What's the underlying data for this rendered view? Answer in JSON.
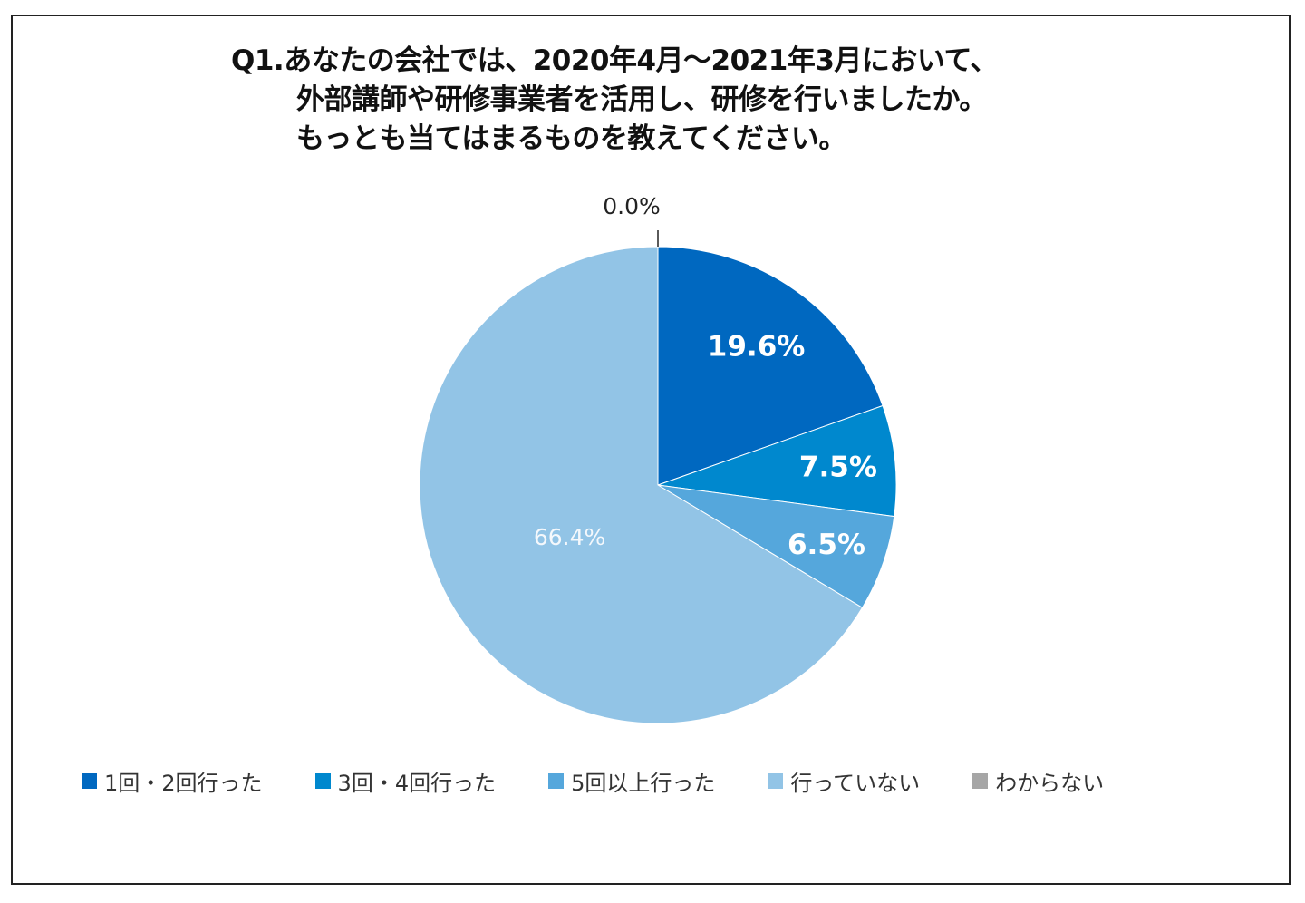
{
  "chart_data": {
    "type": "pie",
    "title_lines": [
      "Q1.あなたの会社では、2020年4月～2021年3月において、",
      "外部講師や研修事業者を活用し、研修を行いましたか。",
      "もっとも当てはまるものを教えてください。"
    ],
    "categories": [
      "1回・2回行った",
      "3回・4回行った",
      "5回以上行った",
      "行っていない",
      "わからない"
    ],
    "values": [
      19.6,
      7.5,
      6.5,
      66.4,
      0.0
    ],
    "labels": [
      "19.6%",
      "7.5%",
      "6.5%",
      "66.4%",
      "0.0%"
    ],
    "colors": [
      "#0068C0",
      "#0088CE",
      "#55A7DC",
      "#92C4E6",
      "#A6A6A6"
    ],
    "start": "12 o'clock",
    "direction": "clockwise",
    "legend_position": "bottom"
  }
}
